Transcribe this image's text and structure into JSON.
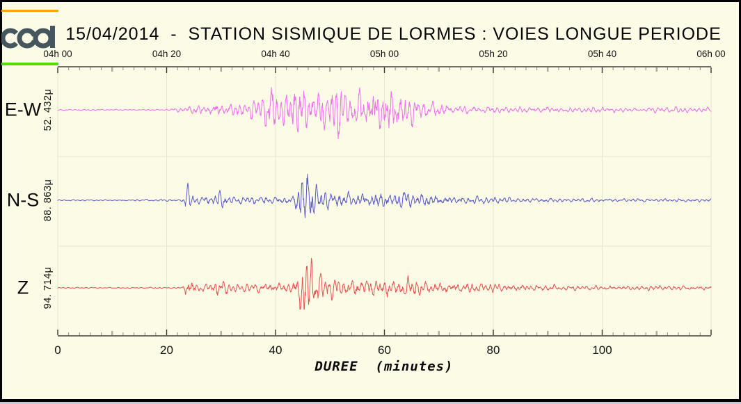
{
  "header": {
    "title": "15/04/2014  -  STATION SISMIQUE DE LORMES : VOIES LONGUE PERIODE",
    "logo_name": "cea-logo"
  },
  "colors": {
    "background": "#FCFCE6",
    "frame": "#000000",
    "bottom_edge_gray": "#C9C9D6",
    "axis": "#3f3f3f",
    "grid": "#E6E6CC",
    "tick_minor": "#8A8A84",
    "tick_mid": "#ACACA2",
    "tick_major": "#333333",
    "orange_rule": "#FFA500",
    "green_rule": "#55DD00",
    "logo": "#46565F",
    "trace_ew": "#EE6EEE",
    "trace_ns": "#5A5AC8",
    "trace_z": "#EA5050"
  },
  "chart_data": {
    "type": "line",
    "title": "15/04/2014 - STATION SISMIQUE DE LORMES : VOIES LONGUE PERIODE",
    "subtitle": "Seismogram, three long-period components, event onset ~04h23, main phase ~04h45",
    "xlabel": "DUREE  (minutes)",
    "xlim": [
      0,
      120
    ],
    "grid": "faint vertical lines every 20 minutes; faint horizontal separators between channel bands",
    "legend_position": "left",
    "top_axis_tick_labels": [
      "04h 00",
      "04h 20",
      "04h 40",
      "05h 00",
      "05h 20",
      "05h 40",
      "06h 00"
    ],
    "top_axis_tick_minutes": [
      0,
      20,
      40,
      60,
      80,
      100,
      120
    ],
    "bottom_axis_ticks": [
      0,
      20,
      40,
      60,
      80,
      100
    ],
    "minor_tick_step_minutes": 2,
    "mid_tick_step_minutes": 10,
    "envelope_units": "half peak deflection of trace, render px; x in minutes",
    "channels": [
      {
        "name": "E-W",
        "amplitude_label": "52. 432μ",
        "peak_amplitude_microns": 52.432,
        "color": "#EE6EEE",
        "envelope": [
          [
            0,
            1
          ],
          [
            20,
            1
          ],
          [
            21,
            2
          ],
          [
            23,
            5
          ],
          [
            25,
            7
          ],
          [
            27,
            8
          ],
          [
            29,
            11
          ],
          [
            31,
            9
          ],
          [
            33,
            11
          ],
          [
            35,
            13
          ],
          [
            37,
            16
          ],
          [
            38,
            28
          ],
          [
            39,
            46
          ],
          [
            39.5,
            40
          ],
          [
            40,
            30
          ],
          [
            41,
            22
          ],
          [
            42,
            26
          ],
          [
            43,
            42
          ],
          [
            44,
            56
          ],
          [
            44.5,
            48
          ],
          [
            45,
            40
          ],
          [
            46,
            34
          ],
          [
            47,
            30
          ],
          [
            48,
            36
          ],
          [
            49,
            42
          ],
          [
            50,
            32
          ],
          [
            51,
            36
          ],
          [
            52,
            46
          ],
          [
            52.5,
            40
          ],
          [
            53,
            32
          ],
          [
            54,
            26
          ],
          [
            55,
            26
          ],
          [
            56,
            30
          ],
          [
            57,
            34
          ],
          [
            58,
            40
          ],
          [
            59,
            44
          ],
          [
            60,
            40
          ],
          [
            61,
            42
          ],
          [
            62,
            36
          ],
          [
            63,
            26
          ],
          [
            64,
            30
          ],
          [
            65,
            26
          ],
          [
            66,
            20
          ],
          [
            67,
            16
          ],
          [
            68,
            12
          ],
          [
            70,
            10
          ],
          [
            72,
            8
          ],
          [
            74,
            7
          ],
          [
            78,
            6
          ],
          [
            84,
            5
          ],
          [
            90,
            5
          ],
          [
            96,
            4
          ],
          [
            102,
            5
          ],
          [
            108,
            4
          ],
          [
            114,
            5
          ],
          [
            120,
            4
          ]
        ]
      },
      {
        "name": "N-S",
        "amplitude_label": "88. 863μ",
        "peak_amplitude_microns": 88.863,
        "color": "#5A5AC8",
        "envelope": [
          [
            0,
            1
          ],
          [
            13,
            1
          ],
          [
            14,
            1.5
          ],
          [
            22.5,
            1.5
          ],
          [
            23,
            3
          ],
          [
            23.5,
            20
          ],
          [
            24,
            24
          ],
          [
            24.5,
            14
          ],
          [
            25,
            8
          ],
          [
            26,
            10
          ],
          [
            27,
            9
          ],
          [
            28,
            7
          ],
          [
            29,
            12
          ],
          [
            30,
            14
          ],
          [
            30.5,
            10
          ],
          [
            31,
            7
          ],
          [
            32,
            6
          ],
          [
            34,
            5
          ],
          [
            36,
            6
          ],
          [
            38,
            7
          ],
          [
            40,
            6
          ],
          [
            42,
            7
          ],
          [
            43.5,
            9
          ],
          [
            44,
            18
          ],
          [
            44.5,
            42
          ],
          [
            45,
            62
          ],
          [
            45.5,
            56
          ],
          [
            46,
            48
          ],
          [
            46.5,
            38
          ],
          [
            47,
            28
          ],
          [
            48,
            20
          ],
          [
            49,
            16
          ],
          [
            50,
            13
          ],
          [
            51,
            12
          ],
          [
            52,
            14
          ],
          [
            53,
            12
          ],
          [
            54,
            11
          ],
          [
            55,
            12
          ],
          [
            56,
            14
          ],
          [
            57,
            12
          ],
          [
            58,
            13
          ],
          [
            59,
            14
          ],
          [
            60,
            12
          ],
          [
            61,
            13
          ],
          [
            62,
            14
          ],
          [
            63,
            12
          ],
          [
            64,
            11
          ],
          [
            65,
            12
          ],
          [
            66,
            11
          ],
          [
            67,
            10
          ],
          [
            68,
            9
          ],
          [
            70,
            8
          ],
          [
            72,
            7
          ],
          [
            75,
            6
          ],
          [
            80,
            5
          ],
          [
            85,
            4
          ],
          [
            90,
            3.5
          ],
          [
            95,
            3
          ],
          [
            100,
            3
          ],
          [
            105,
            3
          ],
          [
            110,
            2.5
          ],
          [
            115,
            2.5
          ],
          [
            120,
            3
          ]
        ]
      },
      {
        "name": "Z",
        "amplitude_label": "94. 714μ",
        "peak_amplitude_microns": 94.714,
        "color": "#EA5050",
        "envelope": [
          [
            0,
            1
          ],
          [
            22.5,
            1
          ],
          [
            23,
            2
          ],
          [
            23.5,
            13
          ],
          [
            24,
            17
          ],
          [
            24.5,
            15
          ],
          [
            25,
            9
          ],
          [
            26,
            7
          ],
          [
            27,
            6
          ],
          [
            28,
            9
          ],
          [
            29,
            15
          ],
          [
            29.5,
            17
          ],
          [
            30,
            13
          ],
          [
            31,
            9
          ],
          [
            32,
            7
          ],
          [
            33,
            6
          ],
          [
            34,
            6
          ],
          [
            35,
            7
          ],
          [
            36,
            7
          ],
          [
            37,
            8
          ],
          [
            38,
            8
          ],
          [
            39,
            9
          ],
          [
            40,
            9
          ],
          [
            41,
            8
          ],
          [
            42,
            9
          ],
          [
            43,
            11
          ],
          [
            44,
            16
          ],
          [
            44.5,
            42
          ],
          [
            45,
            64
          ],
          [
            45.5,
            58
          ],
          [
            46,
            52
          ],
          [
            46.5,
            42
          ],
          [
            47,
            32
          ],
          [
            48,
            24
          ],
          [
            49,
            19
          ],
          [
            50,
            16
          ],
          [
            51,
            15
          ],
          [
            52,
            17
          ],
          [
            53,
            15
          ],
          [
            54,
            13
          ],
          [
            55,
            15
          ],
          [
            56,
            17
          ],
          [
            57,
            15
          ],
          [
            58,
            17
          ],
          [
            59,
            15
          ],
          [
            60,
            13
          ],
          [
            61,
            15
          ],
          [
            62,
            13
          ],
          [
            63,
            15
          ],
          [
            64,
            17
          ],
          [
            65,
            15
          ],
          [
            66,
            13
          ],
          [
            67,
            11
          ],
          [
            68,
            10
          ],
          [
            70,
            9
          ],
          [
            72,
            9
          ],
          [
            75,
            8
          ],
          [
            80,
            7
          ],
          [
            85,
            6
          ],
          [
            90,
            5
          ],
          [
            95,
            4
          ],
          [
            100,
            4
          ],
          [
            105,
            3.5
          ],
          [
            110,
            4
          ],
          [
            115,
            3.5
          ],
          [
            120,
            3.5
          ]
        ]
      }
    ]
  }
}
